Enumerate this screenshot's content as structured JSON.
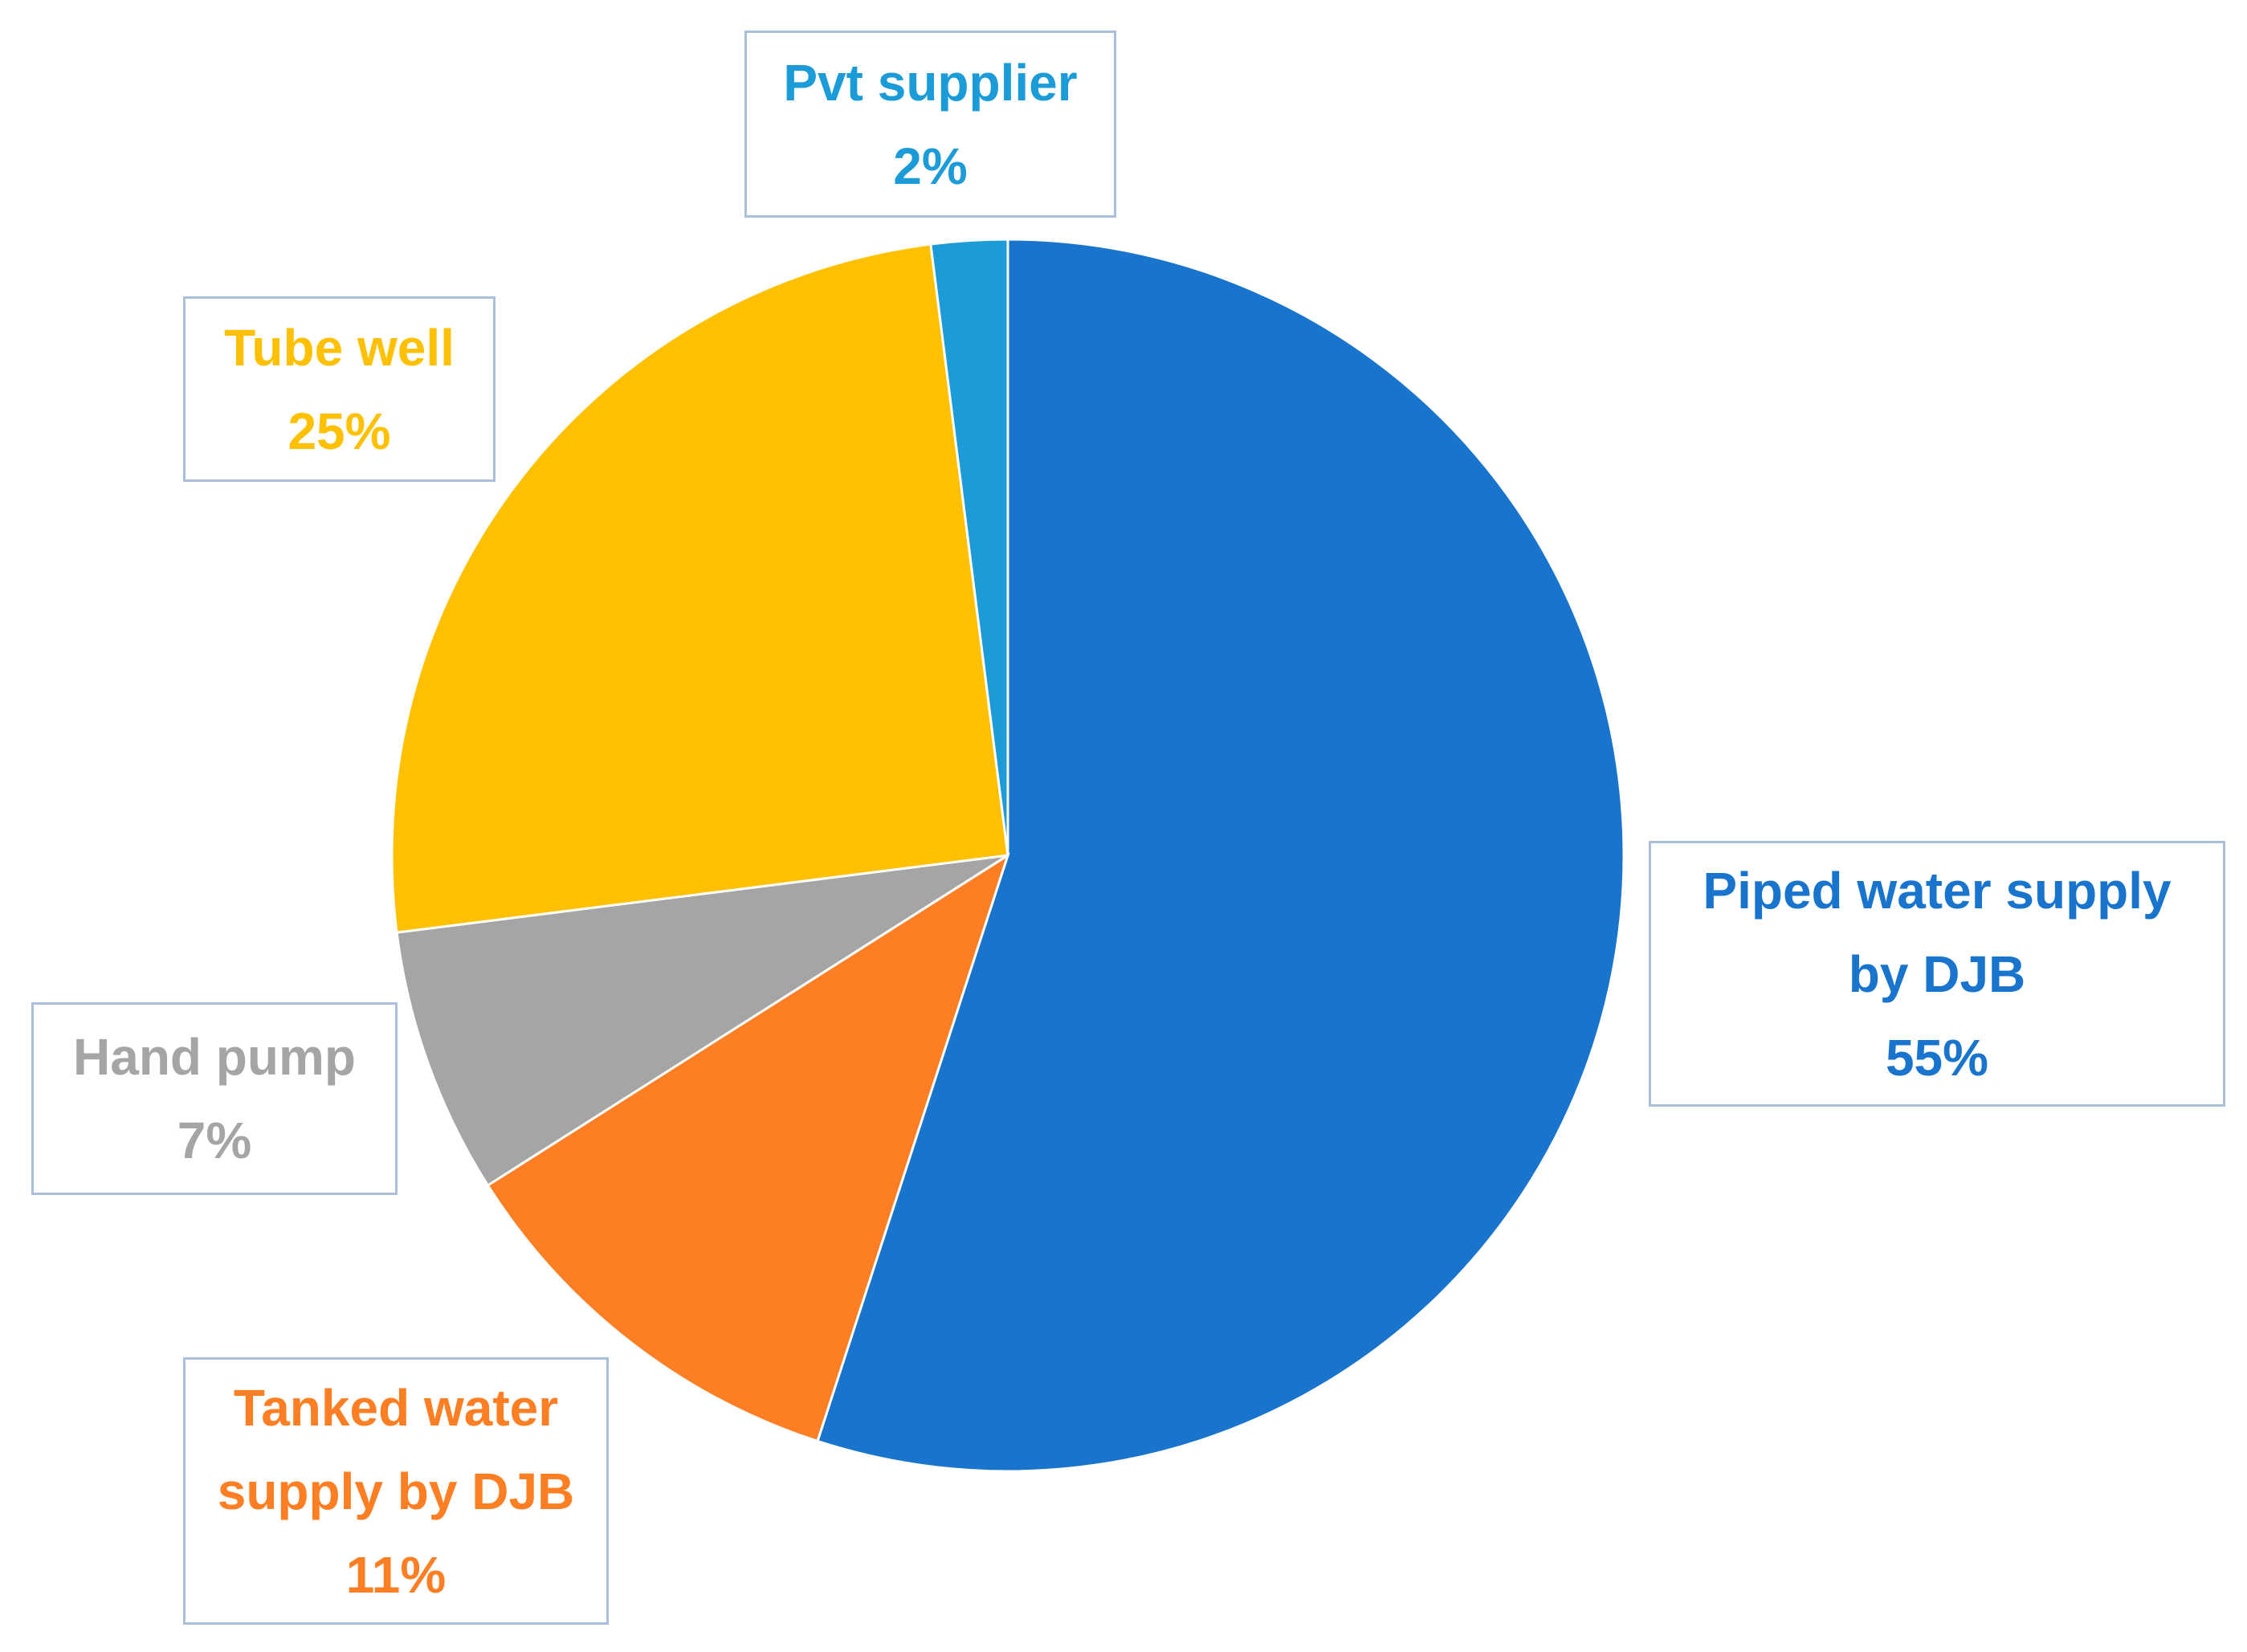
{
  "chart_data": {
    "type": "pie",
    "title": "",
    "start_angle_deg": 0,
    "direction": "clockwise",
    "slices": [
      {
        "label_lines": [
          "Piped water supply",
          "by DJB"
        ],
        "value": 55,
        "value_label": "55%",
        "color": "#1874cd"
      },
      {
        "label_lines": [
          "Tanked water",
          "supply by DJB"
        ],
        "value": 11,
        "value_label": "11%",
        "color": "#fe7f23"
      },
      {
        "label_lines": [
          "Hand pump"
        ],
        "value": 7,
        "value_label": "7%",
        "color": "#a5a5a5"
      },
      {
        "label_lines": [
          "Tube well"
        ],
        "value": 25,
        "value_label": "25%",
        "color": "#ffc000"
      },
      {
        "label_lines": [
          "Pvt supplier"
        ],
        "value": 2,
        "value_label": "2%",
        "color": "#1b9cd8"
      }
    ],
    "legend": "none",
    "data_labels": "outside, boxed"
  }
}
